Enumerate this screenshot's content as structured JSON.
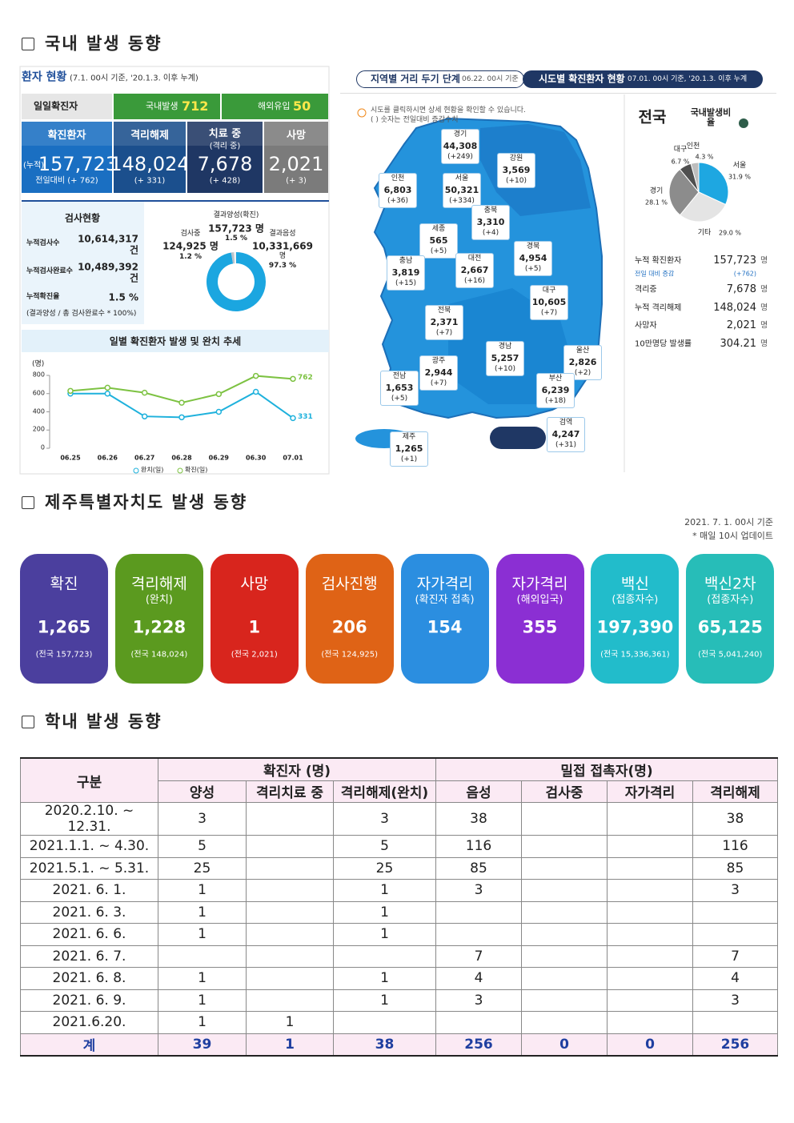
{
  "sections": [
    "국내 발생 동향",
    "제주특별자치도 발생 동향",
    "학내 발생 동향"
  ],
  "domestic": {
    "status": {
      "title": "환자 현황",
      "note": "(7.1. 00시 기준, '20.1.3. 이후 누계)",
      "daily_label": "일일확진자",
      "local_label": "국내발생",
      "local_value": "712",
      "import_label": "해외유입",
      "import_value": "50"
    },
    "boxes": [
      {
        "label": "확진환자",
        "prefix": "(누적)",
        "value": "157,723",
        "sub": "전일대비 (+ 762)"
      },
      {
        "label": "격리해제",
        "value": "148,024",
        "sub": "(+ 331)"
      },
      {
        "label": "치료 중",
        "label2": "(격리 중)",
        "value": "7,678",
        "sub": "(+ 428)"
      },
      {
        "label": "사망",
        "value": "2,021",
        "sub": "(+ 3)"
      }
    ],
    "tests": {
      "title": "검사현황",
      "rows": [
        {
          "label": "누적검사수",
          "value": "10,614,317",
          "unit": "건"
        },
        {
          "label": "누적검사완료수",
          "value": "10,489,392",
          "unit": "건"
        },
        {
          "label": "누적확진율",
          "value": "1.5 %"
        }
      ],
      "note": "(결과양성 / 총 검사완료수 * 100%)",
      "donut": [
        {
          "name": "결과음성",
          "count": "10,331,669",
          "unit": "명",
          "percent": 97.3,
          "percent_label": "97.3 %",
          "color": "#1ba6e0"
        },
        {
          "name": "결과양성(확진)",
          "count": "157,723 명",
          "percent": 1.5,
          "percent_label": "1.5 %",
          "color": "#b9c3cc"
        },
        {
          "name": "검사중",
          "count": "124,925 명",
          "percent": 1.2,
          "percent_label": "1.2 %",
          "color": "#f2f2f2"
        }
      ]
    },
    "trend": {
      "type": "line",
      "title": "일별 확진환자 발생 및 완치 추세",
      "unit": "(명)",
      "categories": [
        "06.25",
        "06.26",
        "06.27",
        "06.28",
        "06.29",
        "06.30",
        "07.01"
      ],
      "ylim": [
        0,
        800
      ],
      "yticks": [
        0,
        200,
        400,
        600,
        800
      ],
      "series": [
        {
          "name": "완치(일)",
          "color": "#1eb1dc",
          "values": [
            600,
            600,
            350,
            340,
            400,
            620,
            331
          ]
        },
        {
          "name": "확진(일)",
          "color": "#7dc242",
          "values": [
            630,
            665,
            610,
            500,
            595,
            795,
            762
          ]
        }
      ]
    },
    "map": {
      "tab1": "지역별 거리 두기 단계",
      "tab1_note": "06.22. 00시 기준",
      "tab2": "시도별 확진환자 현황",
      "tab2_note": "07.01. 00시 기준, '20.1.3. 이후 누계",
      "info": "시도를 클릭하시면 상세 현황을 확인할 수 있습니다.",
      "info2": "( ) 숫자는 전일대비 증감수치",
      "regions": [
        {
          "name": "경기",
          "total": "44,308",
          "change": "(+249)"
        },
        {
          "name": "강원",
          "total": "3,569",
          "change": "(+10)"
        },
        {
          "name": "인천",
          "total": "6,803",
          "change": "(+36)"
        },
        {
          "name": "서울",
          "total": "50,321",
          "change": "(+334)"
        },
        {
          "name": "충북",
          "total": "3,310",
          "change": "(+4)"
        },
        {
          "name": "세종",
          "total": "565",
          "change": "(+5)"
        },
        {
          "name": "경북",
          "total": "4,954",
          "change": "(+5)"
        },
        {
          "name": "충남",
          "total": "3,819",
          "change": "(+15)"
        },
        {
          "name": "대전",
          "total": "2,667",
          "change": "(+16)"
        },
        {
          "name": "대구",
          "total": "10,605",
          "change": "(+7)"
        },
        {
          "name": "전북",
          "total": "2,371",
          "change": "(+7)"
        },
        {
          "name": "광주",
          "total": "2,944",
          "change": "(+7)"
        },
        {
          "name": "경남",
          "total": "5,257",
          "change": "(+10)"
        },
        {
          "name": "울산",
          "total": "2,826",
          "change": "(+2)"
        },
        {
          "name": "전남",
          "total": "1,653",
          "change": "(+5)"
        },
        {
          "name": "부산",
          "total": "6,239",
          "change": "(+18)"
        },
        {
          "name": "제주",
          "total": "1,265",
          "change": "(+1)"
        },
        {
          "name": "검역",
          "total": "4,247",
          "change": "(+31)"
        }
      ]
    },
    "national": {
      "title": "전국",
      "pie_title": "국내발생비율",
      "pie": [
        {
          "name": "서울",
          "value": 31.9,
          "label": "31.9 %",
          "color": "#1ea7e1"
        },
        {
          "name": "기타",
          "value": 29.0,
          "label": "29.0 %",
          "color": "#e4e4e4"
        },
        {
          "name": "경기",
          "value": 28.1,
          "label": "28.1 %",
          "color": "#8c8c8c"
        },
        {
          "name": "대구",
          "value": 6.7,
          "label": "6.7 %",
          "color": "#4f4f4f"
        },
        {
          "name": "인천",
          "value": 4.3,
          "label": "4.3 %",
          "color": "#bdbdbd"
        }
      ],
      "stats": [
        {
          "label": "누적 확진환자",
          "value": "157,723",
          "unit": "명"
        },
        {
          "label": "전일 대비 증감",
          "value": "(+762)"
        },
        {
          "label": "격리중",
          "value": "7,678",
          "unit": "명"
        },
        {
          "label": "누적 격리해제",
          "value": "148,024",
          "unit": "명"
        },
        {
          "label": "사망자",
          "value": "2,021",
          "unit": "명"
        },
        {
          "label": "10만명당 발생률",
          "value": "304.21",
          "unit": "명"
        }
      ]
    }
  },
  "jeju": {
    "as_of": "2021. 7. 1. 00시 기준",
    "note": "* 매일 10시 업데이트",
    "cards": [
      {
        "label": "확진",
        "value": "1,265",
        "note": "(전국 157,723)",
        "color": "#4b3f9e"
      },
      {
        "label": "격리해제",
        "sub": "(완치)",
        "value": "1,228",
        "note": "(전국 148,024)",
        "color": "#5b9a1f"
      },
      {
        "label": "사망",
        "value": "1",
        "note": "(전국 2,021)",
        "color": "#d8251d"
      },
      {
        "label": "검사진행",
        "value": "206",
        "note": "(전국 124,925)",
        "color": "#df6316"
      },
      {
        "label": "자가격리",
        "sub": "(확진자 접촉)",
        "value": "154",
        "color": "#2b8ee0"
      },
      {
        "label": "자가격리",
        "sub": "(해외입국)",
        "value": "355",
        "color": "#8b2fd3"
      },
      {
        "label": "백신",
        "sub": "(접종자수)",
        "value": "197,390",
        "note": "(전국 15,336,361)",
        "color": "#22bccb"
      },
      {
        "label": "백신2차",
        "sub": "(접종자수)",
        "value": "65,125",
        "note": "(전국 5,041,240)",
        "color": "#27bdb8"
      }
    ]
  },
  "school": {
    "table": {
      "corner": "구분",
      "group1": "확진자 (명)",
      "group2": "밀접 접촉자(명)",
      "subheaders": [
        "양성",
        "격리치료 중",
        "격리해제(완치)",
        "음성",
        "검사중",
        "자가격리",
        "격리해제"
      ],
      "rows": [
        [
          "2020.2.10.  ~ 12.31.",
          "3",
          null,
          "3",
          "38",
          null,
          null,
          "38"
        ],
        [
          "2021.1.1.  ~  4.30.",
          "5",
          null,
          "5",
          "116",
          null,
          null,
          "116"
        ],
        [
          "2021.5.1.  ~  5.31.",
          "25",
          null,
          "25",
          "85",
          null,
          null,
          "85"
        ],
        [
          "2021.  6.  1.",
          "1",
          null,
          "1",
          "3",
          null,
          null,
          "3"
        ],
        [
          "2021.  6.  3.",
          "1",
          null,
          "1",
          null,
          null,
          null,
          null
        ],
        [
          "2021.  6.  6.",
          "1",
          null,
          "1",
          null,
          null,
          null,
          null
        ],
        [
          "2021.  6.  7.",
          null,
          null,
          null,
          "7",
          null,
          null,
          "7"
        ],
        [
          "2021.  6.  8.",
          "1",
          null,
          "1",
          "4",
          null,
          null,
          "4"
        ],
        [
          "2021.  6.  9.",
          "1",
          null,
          "1",
          "3",
          null,
          null,
          "3"
        ],
        [
          "2021.6.20.",
          "1",
          "1",
          null,
          null,
          null,
          null,
          null
        ]
      ],
      "total": [
        "계",
        "39",
        "1",
        "38",
        "256",
        "0",
        "0",
        "256"
      ]
    }
  }
}
